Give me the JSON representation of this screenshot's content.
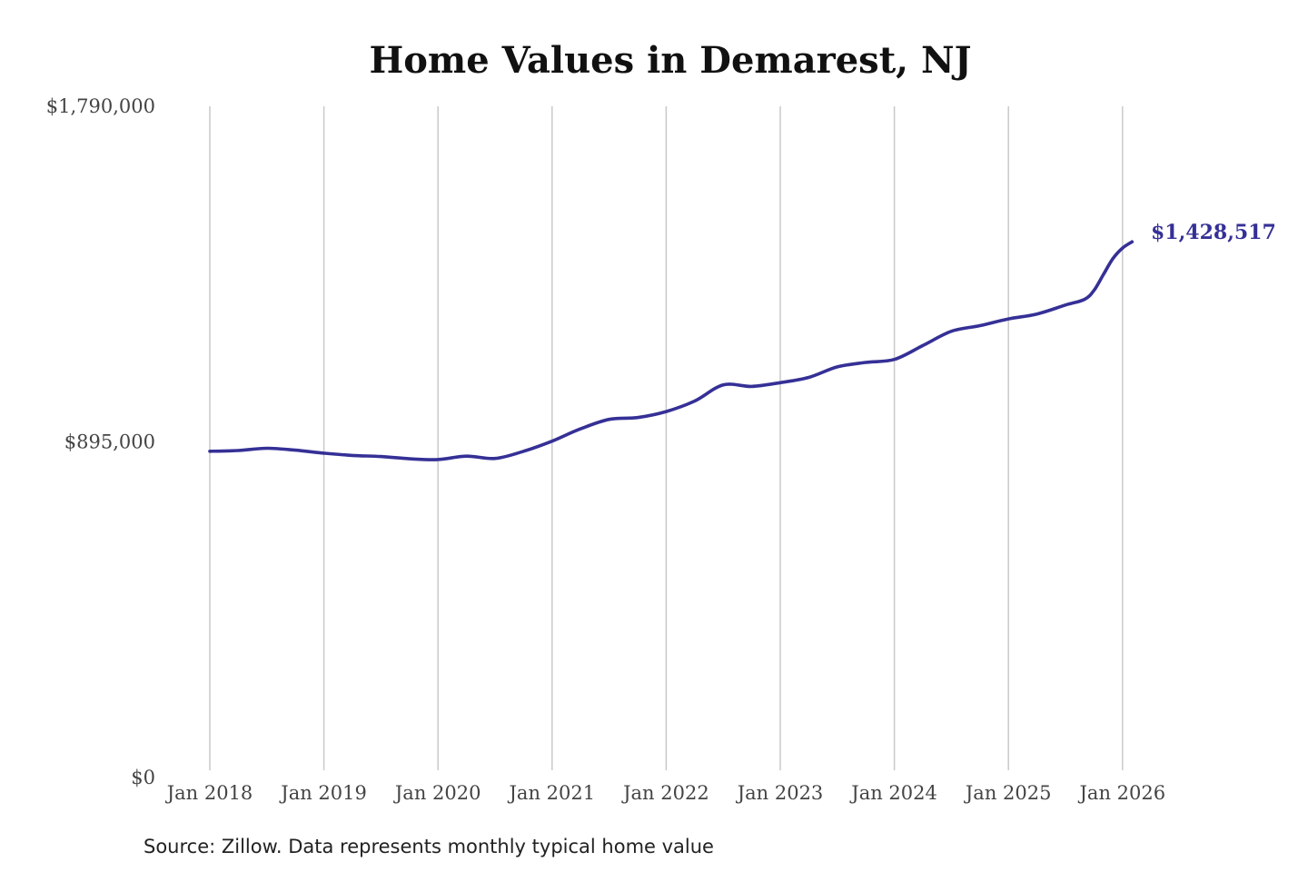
{
  "chart_data": {
    "type": "line",
    "title": "Home Values in Demarest, NJ",
    "source": "Source: Zillow. Data represents monthly typical home value",
    "ylim": [
      0,
      1790000
    ],
    "yticks": [
      {
        "value": 0,
        "label": "$0"
      },
      {
        "value": 895000,
        "label": "$895,000"
      },
      {
        "value": 1790000,
        "label": "$1,790,000"
      }
    ],
    "xticks": [
      "Jan 2018",
      "Jan 2019",
      "Jan 2020",
      "Jan 2021",
      "Jan 2022",
      "Jan 2023",
      "Jan 2024",
      "Jan 2025",
      "Jan 2026"
    ],
    "grid": "vertical",
    "line_color": "#353096",
    "end_label": "$1,428,517",
    "series": [
      {
        "x": [
          "2018-01",
          "2018-04",
          "2018-07",
          "2018-10",
          "2019-01",
          "2019-04",
          "2019-07",
          "2019-10",
          "2020-01",
          "2020-04",
          "2020-07",
          "2020-10",
          "2021-01",
          "2021-04",
          "2021-07",
          "2021-10",
          "2022-01",
          "2022-04",
          "2022-07",
          "2022-10",
          "2023-01",
          "2023-04",
          "2023-07",
          "2023-10",
          "2024-01",
          "2024-04",
          "2024-07",
          "2024-10",
          "2025-01",
          "2025-04",
          "2025-07",
          "2025-09",
          "2025-10",
          "2025-11",
          "2025-12",
          "2026-01",
          "2026-02"
        ],
        "y": [
          870000,
          872000,
          878000,
          873000,
          865000,
          859000,
          856000,
          850000,
          848000,
          857000,
          851000,
          870000,
          897000,
          930000,
          955000,
          960000,
          976000,
          1004000,
          1047000,
          1043000,
          1053000,
          1067000,
          1095000,
          1107000,
          1115000,
          1152000,
          1190000,
          1205000,
          1223000,
          1236000,
          1260000,
          1275000,
          1299000,
          1342000,
          1384000,
          1412000,
          1428517
        ]
      }
    ]
  }
}
